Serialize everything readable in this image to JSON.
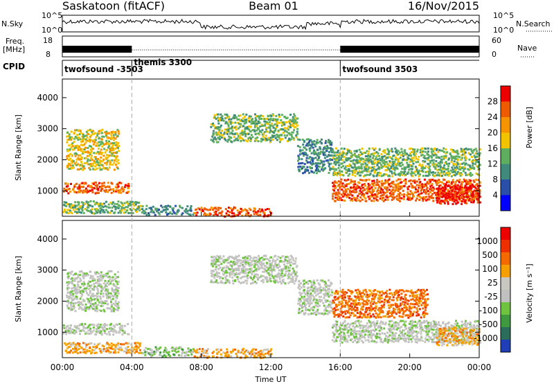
{
  "header": {
    "station": "Saskatoon (fitACF)",
    "beam": "Beam 01",
    "date": "16/Nov/2015"
  },
  "panels": {
    "nsky": {
      "left_label": "N.Sky",
      "right_label": "N.Search",
      "left_ticks": [
        "10^5",
        "10^0"
      ],
      "right_ticks": [
        "10^5",
        "10^0"
      ]
    },
    "freq": {
      "left_label_1": "Freq.",
      "left_label_2": "[MHz]",
      "left_ticks": [
        "18",
        "8"
      ],
      "right_label": "Nave",
      "right_ticks": [
        "60",
        "0"
      ]
    },
    "cpid": {
      "label": "CPID",
      "segments": [
        {
          "name": "twofsound -3503",
          "start_hour": 0
        },
        {
          "name": "themis 3300",
          "start_hour": 4
        },
        {
          "name": "twofsound 3503",
          "start_hour": 16
        }
      ]
    }
  },
  "colors": {
    "power_scale": [
      "#0000ff",
      "#2a4fa8",
      "#3f8a7a",
      "#5fae5f",
      "#f2c400",
      "#f59400",
      "#ee5a00",
      "#ee0000"
    ],
    "velocity_scale": [
      "#1f3fb8",
      "#2a6d5a",
      "#3f9a3f",
      "#6ec43f",
      "#c0c0c0",
      "#c8c8c0",
      "#f5a000",
      "#f56a00",
      "#ee3000",
      "#ee0000"
    ]
  },
  "chart_data": [
    {
      "type": "heatmap",
      "name": "power",
      "x_unit": "Time UT",
      "x_range_hours": [
        0,
        24
      ],
      "x_ticks": [
        "00:00",
        "04:00",
        "08:00",
        "12:00",
        "16:00",
        "20:00",
        "00:00"
      ],
      "ylabel": "Slant Range [km]",
      "yticks": [
        "1000",
        "2000",
        "3000",
        "4000"
      ],
      "ylim": [
        180,
        4600
      ],
      "colorbar_label": "Power [dB]",
      "colorbar_ticks": [
        "4",
        "8",
        "12",
        "16",
        "20",
        "24",
        "28"
      ],
      "bands": [
        {
          "t0": 0.0,
          "t1": 3.8,
          "r0": 950,
          "r1": 1300,
          "level": 6
        },
        {
          "t0": 0.2,
          "t1": 3.2,
          "r0": 1700,
          "r1": 3000,
          "level": 4
        },
        {
          "t0": 0.0,
          "t1": 4.5,
          "r0": 300,
          "r1": 700,
          "level": 3
        },
        {
          "t0": 4.5,
          "t1": 7.5,
          "r0": 250,
          "r1": 550,
          "level": 2
        },
        {
          "t0": 8.5,
          "t1": 13.5,
          "r0": 2600,
          "r1": 3500,
          "level": 3
        },
        {
          "t0": 13.5,
          "t1": 15.5,
          "r0": 1600,
          "r1": 2700,
          "level": 2
        },
        {
          "t0": 7.5,
          "t1": 12.0,
          "r0": 200,
          "r1": 500,
          "level": 6
        },
        {
          "t0": 15.5,
          "t1": 24.0,
          "r0": 1500,
          "r1": 2400,
          "level": 3
        },
        {
          "t0": 15.5,
          "t1": 24.0,
          "r0": 700,
          "r1": 1400,
          "level": 6
        },
        {
          "t0": 21.5,
          "t1": 24.0,
          "r0": 600,
          "r1": 1200,
          "level": 7
        }
      ]
    },
    {
      "type": "heatmap",
      "name": "velocity",
      "x_unit": "Time UT",
      "x_range_hours": [
        0,
        24
      ],
      "x_ticks": [
        "00:00",
        "04:00",
        "08:00",
        "12:00",
        "16:00",
        "20:00",
        "00:00"
      ],
      "xlabel": "Time UT",
      "ylabel": "Slant Range [km]",
      "yticks": [
        "1000",
        "2000",
        "3000",
        "4000"
      ],
      "ylim": [
        180,
        4600
      ],
      "colorbar_label": "Velocity [m s⁻¹]",
      "colorbar_ticks": [
        "1000",
        "500",
        "100",
        "25",
        "-25",
        "-100",
        "-500",
        "-1000"
      ],
      "bands": [
        {
          "t0": 0.0,
          "t1": 3.8,
          "r0": 950,
          "r1": 1300,
          "level": 4
        },
        {
          "t0": 0.2,
          "t1": 3.2,
          "r0": 1700,
          "r1": 3000,
          "level": 4
        },
        {
          "t0": 0.0,
          "t1": 4.5,
          "r0": 350,
          "r1": 700,
          "level": 6
        },
        {
          "t0": 4.5,
          "t1": 7.5,
          "r0": 250,
          "r1": 550,
          "level": 3
        },
        {
          "t0": 8.5,
          "t1": 13.5,
          "r0": 2600,
          "r1": 3500,
          "level": 4
        },
        {
          "t0": 13.5,
          "t1": 15.5,
          "r0": 1600,
          "r1": 2700,
          "level": 4
        },
        {
          "t0": 7.5,
          "t1": 12.0,
          "r0": 200,
          "r1": 500,
          "level": 6
        },
        {
          "t0": 15.5,
          "t1": 21.0,
          "r0": 1500,
          "r1": 2400,
          "level": 7
        },
        {
          "t0": 15.5,
          "t1": 24.0,
          "r0": 700,
          "r1": 1400,
          "level": 4
        },
        {
          "t0": 21.5,
          "t1": 24.0,
          "r0": 600,
          "r1": 1200,
          "level": 6
        }
      ]
    }
  ]
}
